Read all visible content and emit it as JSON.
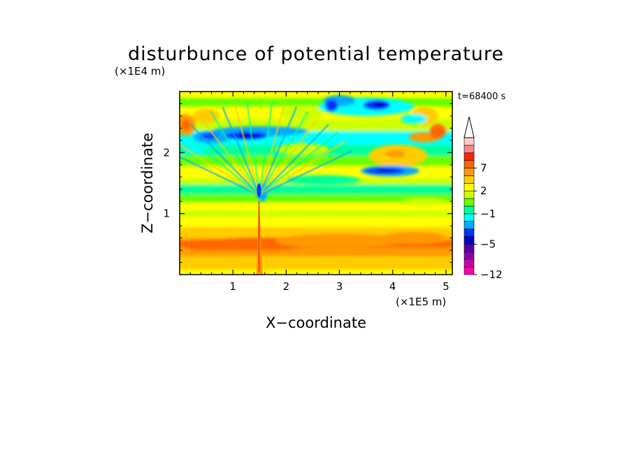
{
  "chart_data": {
    "type": "heatmap",
    "title": "disturbunce of potential temperature",
    "xlabel": "X−coordinate",
    "ylabel": "Z−coordinate",
    "x_unit": "(×1E5 m)",
    "y_unit": "(×1E4 m)",
    "time_label": "t=68400 s",
    "xlim": [
      0,
      5.12
    ],
    "ylim": [
      0,
      3.0
    ],
    "x_ticks": [
      1,
      2,
      3,
      4,
      5
    ],
    "x_tick_labels": [
      "1",
      "2",
      "3",
      "4",
      "5"
    ],
    "y_ticks": [
      1,
      2
    ],
    "y_tick_labels": [
      "1",
      "2"
    ],
    "colorbar": {
      "levels": [
        -12,
        -10,
        -8,
        -6,
        -5,
        -4,
        -3,
        -2,
        -1,
        0,
        1,
        2,
        3,
        5,
        7,
        9,
        11
      ],
      "tick_labels": [
        "7",
        "2",
        "−1",
        "−5",
        "−12"
      ],
      "tick_values": [
        7,
        2,
        -1,
        -5,
        -12
      ],
      "colors": [
        "#ff00aa",
        "#cc00aa",
        "#8800aa",
        "#5500aa",
        "#0000cc",
        "#0033ff",
        "#00aaff",
        "#00ffff",
        "#00ff99",
        "#66ff00",
        "#ccff00",
        "#ffff00",
        "#ffcc00",
        "#ff9900",
        "#ff6600",
        "#ff2200",
        "#ff8888",
        "#ffcccc"
      ],
      "extend_top": true
    },
    "features": [
      {
        "x": 1.5,
        "z": 0.6,
        "value": 6,
        "kind": "warm core near mountain"
      },
      {
        "x": 1.2,
        "z": 2.3,
        "value": -5,
        "kind": "cold band"
      },
      {
        "x": 3.8,
        "z": 1.7,
        "value": -5,
        "kind": "cold lens"
      },
      {
        "x": 3.7,
        "z": 2.8,
        "value": -5,
        "kind": "cold patch"
      },
      {
        "x": 0.1,
        "z": 2.5,
        "value": 5,
        "kind": "warm patch"
      },
      {
        "x": 4.6,
        "z": 2.3,
        "value": 4,
        "kind": "warm patch"
      }
    ]
  }
}
